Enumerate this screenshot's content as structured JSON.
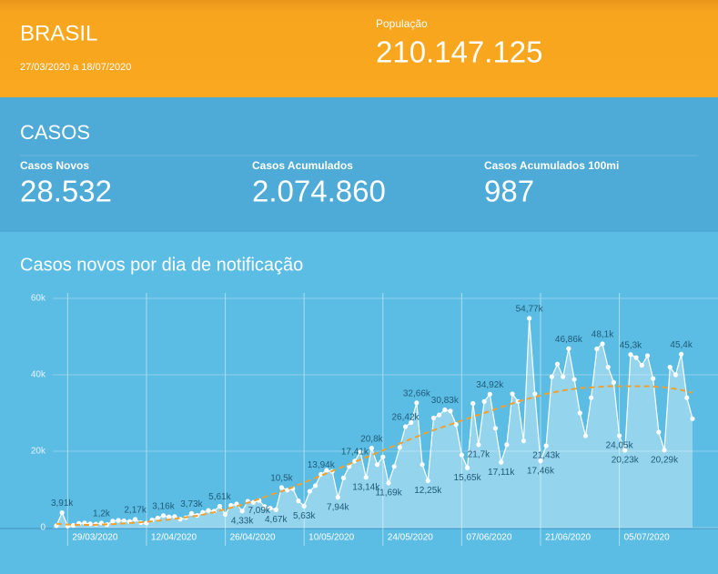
{
  "header": {
    "title": "BRASIL",
    "date_range": "27/03/2020 a 18/07/2020",
    "population_label": "População",
    "population": "210.147.125"
  },
  "cases": {
    "title": "CASOS",
    "stats": [
      {
        "label": "Casos Novos",
        "value": "28.532"
      },
      {
        "label": "Casos Acumulados",
        "value": "2.074.860"
      },
      {
        "label": "Casos Acumulados 100mi",
        "value": "987"
      }
    ]
  },
  "chart_data": {
    "type": "line",
    "title": "Casos novos por dia de notificação",
    "categories": [
      null,
      null,
      "29/03/2020",
      null,
      null,
      null,
      null,
      null,
      null,
      null,
      null,
      null,
      null,
      null,
      null,
      null,
      "12/04/2020",
      null,
      null,
      null,
      null,
      null,
      null,
      null,
      null,
      null,
      null,
      null,
      null,
      null,
      "26/04/2020",
      null,
      null,
      null,
      null,
      null,
      null,
      null,
      null,
      null,
      null,
      null,
      null,
      null,
      "10/05/2020",
      null,
      null,
      null,
      null,
      null,
      null,
      null,
      null,
      null,
      null,
      null,
      null,
      null,
      "24/05/2020",
      null,
      null,
      null,
      null,
      null,
      null,
      null,
      null,
      null,
      null,
      null,
      null,
      null,
      "07/06/2020",
      null,
      null,
      null,
      null,
      null,
      null,
      null,
      null,
      null,
      null,
      null,
      null,
      null,
      "21/06/2020",
      null,
      null,
      null,
      null,
      null,
      null,
      null,
      null,
      null,
      null,
      null,
      null,
      null,
      "05/07/2020",
      null,
      null,
      null,
      null,
      null,
      null,
      null,
      null,
      null,
      null,
      null,
      null,
      null
    ],
    "series": [
      {
        "color": "#ffffff",
        "area": true,
        "markers": true,
        "values": [
          500,
          3910,
          400,
          600,
          1100,
          1200,
          1000,
          900,
          1200,
          800,
          1700,
          1900,
          1800,
          1600,
          2170,
          1300,
          1200,
          2000,
          2500,
          3160,
          2800,
          2900,
          2200,
          2600,
          3730,
          3200,
          4000,
          4500,
          4300,
          5610,
          3500,
          5800,
          6200,
          4330,
          6900,
          6600,
          7090,
          5500,
          5100,
          4670,
          10500,
          9800,
          10200,
          7000,
          5630,
          9500,
          11000,
          13940,
          15000,
          14700,
          7940,
          13000,
          16000,
          17410,
          19800,
          13140,
          20800,
          16500,
          18500,
          11690,
          16000,
          21000,
          26420,
          27500,
          32660,
          16500,
          12250,
          28700,
          29500,
          30830,
          30500,
          27000,
          19000,
          15650,
          32500,
          21700,
          33000,
          34920,
          26000,
          17110,
          21700,
          35000,
          33000,
          22700,
          54770,
          35000,
          17460,
          21430,
          39500,
          42800,
          39500,
          46860,
          38800,
          30000,
          24000,
          34000,
          46800,
          48100,
          42000,
          38000,
          24050,
          20230,
          45300,
          44500,
          42500,
          45000,
          39000,
          25000,
          20290,
          42000,
          40000,
          45400,
          34000,
          28500
        ],
        "value_labels": [
          null,
          "3,91k",
          null,
          null,
          null,
          null,
          null,
          null,
          "1,2k",
          null,
          null,
          null,
          null,
          null,
          "2,17k",
          null,
          null,
          null,
          null,
          "3,16k",
          null,
          null,
          null,
          null,
          "3,73k",
          null,
          null,
          null,
          null,
          "5,61k",
          null,
          null,
          null,
          "4,33k",
          null,
          null,
          "7,09k",
          null,
          null,
          "4,67k",
          "10,5k",
          null,
          null,
          null,
          "5,63k",
          null,
          null,
          "13,94k",
          null,
          null,
          "7,94k",
          null,
          null,
          "17,41k",
          null,
          "13,14k",
          "20,8k",
          null,
          null,
          "11,69k",
          null,
          null,
          "26,42k",
          null,
          "32,66k",
          null,
          "12,25k",
          null,
          null,
          "30,83k",
          null,
          null,
          null,
          "15,65k",
          null,
          "21,7k",
          null,
          "34,92k",
          null,
          "17,11k",
          null,
          null,
          null,
          null,
          "54,77k",
          null,
          "17,46k",
          "21,43k",
          null,
          null,
          null,
          "46,86k",
          null,
          null,
          null,
          null,
          null,
          "48,1k",
          null,
          null,
          "24,05k",
          "20,23k",
          "45,3k",
          null,
          null,
          null,
          null,
          null,
          "20,29k",
          null,
          null,
          "45,4k",
          null,
          null
        ]
      },
      {
        "color": "#f0a030",
        "dashed": true,
        "values": [
          1000,
          900,
          800,
          750,
          700,
          700,
          720,
          750,
          800,
          850,
          900,
          1000,
          1100,
          1200,
          1300,
          1400,
          1500,
          1650,
          1800,
          1950,
          2100,
          2300,
          2500,
          2700,
          2900,
          3100,
          3400,
          3700,
          4000,
          4400,
          4800,
          5200,
          5600,
          6000,
          6500,
          7000,
          7500,
          8000,
          8500,
          9000,
          9500,
          10000,
          10600,
          11200,
          11800,
          12400,
          13000,
          13600,
          14200,
          14800,
          15400,
          16000,
          16600,
          17200,
          17800,
          18400,
          19000,
          19600,
          20200,
          20800,
          21400,
          22000,
          22600,
          23200,
          23800,
          24400,
          25000,
          25500,
          26000,
          26500,
          27000,
          27500,
          28000,
          28500,
          29000,
          29500,
          30000,
          30500,
          31000,
          31500,
          32000,
          32500,
          33000,
          33400,
          33800,
          34200,
          34600,
          35000,
          35300,
          35600,
          35900,
          36100,
          36300,
          36500,
          36600,
          36700,
          36800,
          36900,
          37000,
          37000,
          37000,
          37000,
          37000,
          37000,
          37000,
          37000,
          36900,
          36800,
          36700,
          36500,
          36300,
          36000,
          35700,
          35300
        ]
      }
    ],
    "ylim": [
      0,
      60000
    ],
    "yticks": [
      0,
      {
        "value": 20000,
        "label": "20k"
      },
      {
        "value": 40000,
        "label": "40k"
      },
      {
        "value": 60000,
        "label": "60k"
      }
    ],
    "grid": true
  }
}
